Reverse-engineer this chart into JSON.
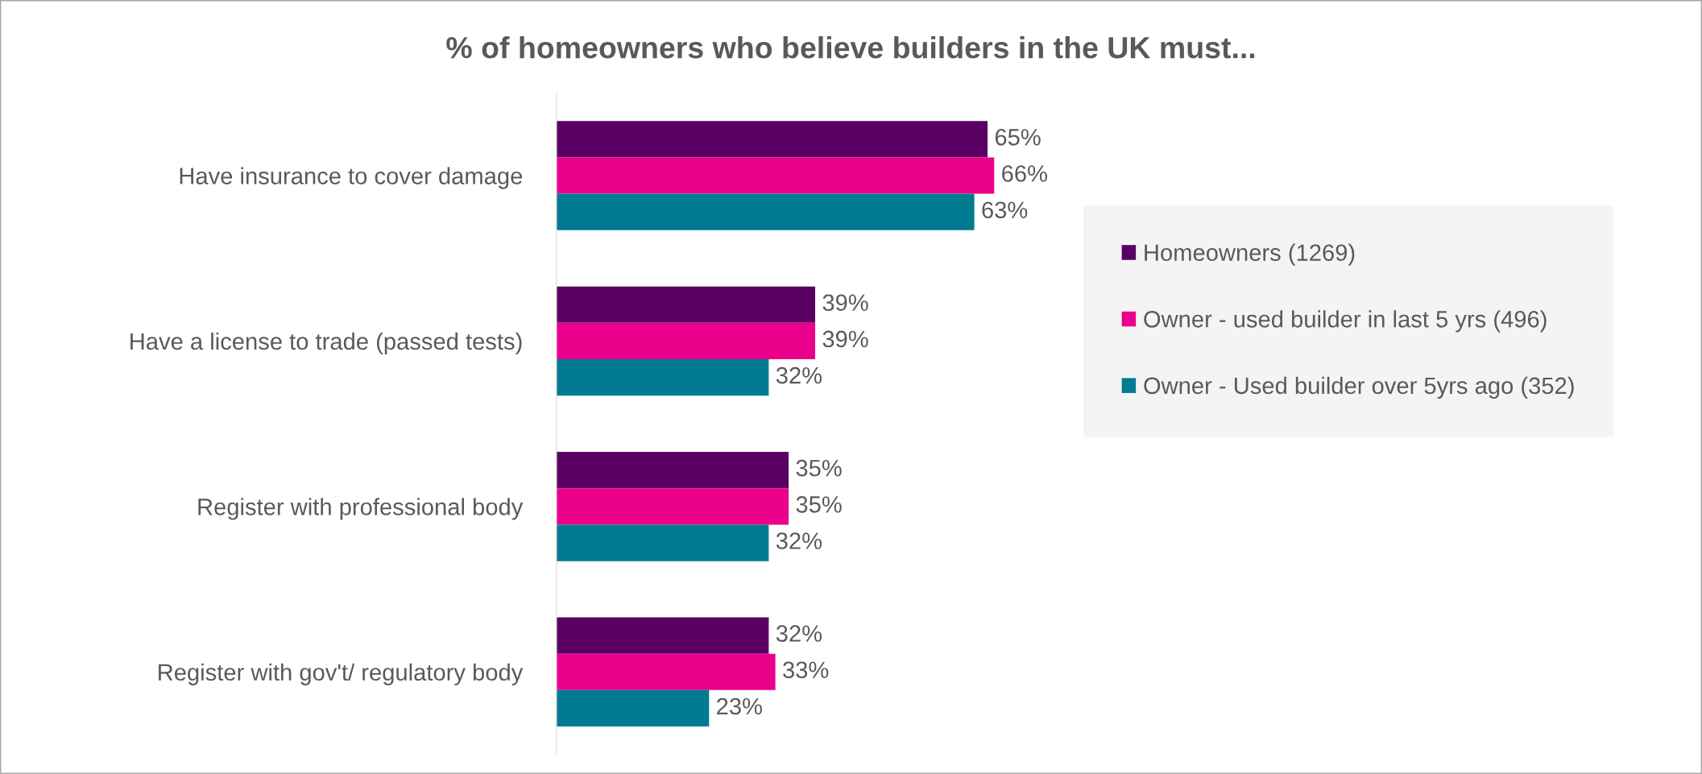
{
  "chart_data": {
    "type": "bar",
    "orientation": "horizontal",
    "title": "% of homeowners who believe builders in the UK must...",
    "categories": [
      "Have insurance to cover damage",
      "Have a license to trade (passed tests)",
      "Register with professional body",
      "Register with gov't/ regulatory body"
    ],
    "series": [
      {
        "name": "Homeowners (1269)",
        "color": "#5a0063",
        "values": [
          65,
          39,
          35,
          32
        ],
        "value_labels": [
          "65%",
          "39%",
          "35%",
          "32%"
        ]
      },
      {
        "name": "Owner - used builder in last 5 yrs (496)",
        "color": "#ea008a",
        "values": [
          66,
          39,
          35,
          33
        ],
        "value_labels": [
          "66%",
          "39%",
          "35%",
          "33%"
        ]
      },
      {
        "name": "Owner - Used builder over 5yrs ago (352)",
        "color": "#007b8f",
        "values": [
          63,
          32,
          32,
          23
        ],
        "value_labels": [
          "63%",
          "32%",
          "32%",
          "23%"
        ]
      }
    ],
    "legend": "right",
    "tick_labels": "y",
    "grid": false
  }
}
